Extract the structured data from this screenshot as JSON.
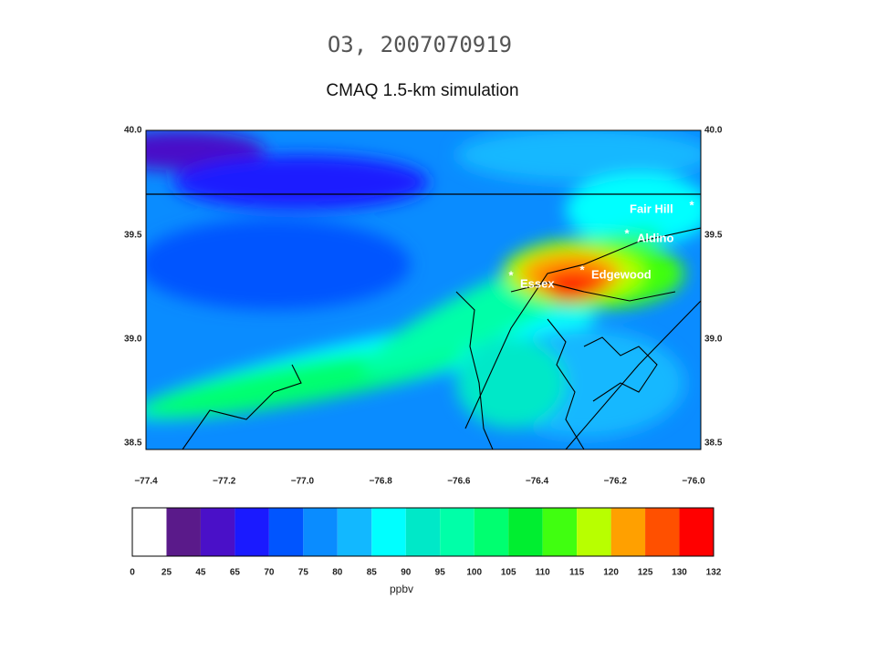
{
  "header": {
    "title": "O3, 2007070919",
    "subtitle": "CMAQ 1.5-km simulation"
  },
  "map": {
    "lat_labels": [
      "40.0",
      "39.5",
      "39.0",
      "38.5"
    ],
    "lon_labels": [
      "−77.4",
      "−77.2",
      "−77.0",
      "−76.8",
      "−76.6",
      "−76.4",
      "−76.2",
      "−76.0"
    ],
    "sites": [
      {
        "label": "Fair Hill",
        "marker": "*"
      },
      {
        "label": "Aldino",
        "marker": "*"
      },
      {
        "label": "Edgewood",
        "marker": "*"
      },
      {
        "label": "Essex",
        "marker": "*"
      }
    ]
  },
  "colorbar": {
    "levels": [
      0,
      25,
      45,
      65,
      70,
      75,
      80,
      85,
      90,
      95,
      100,
      105,
      110,
      115,
      120,
      125,
      130,
      132
    ],
    "colors": [
      "#ffffff",
      "#5a1a8a",
      "#4a10c8",
      "#1a1aff",
      "#0055ff",
      "#0a8cff",
      "#12b8ff",
      "#00ffff",
      "#00e8c8",
      "#00ffa8",
      "#00ff70",
      "#00ee30",
      "#40ff10",
      "#b8ff00",
      "#ffa000",
      "#ff5000",
      "#ff0000"
    ],
    "unit": "ppbv"
  }
}
